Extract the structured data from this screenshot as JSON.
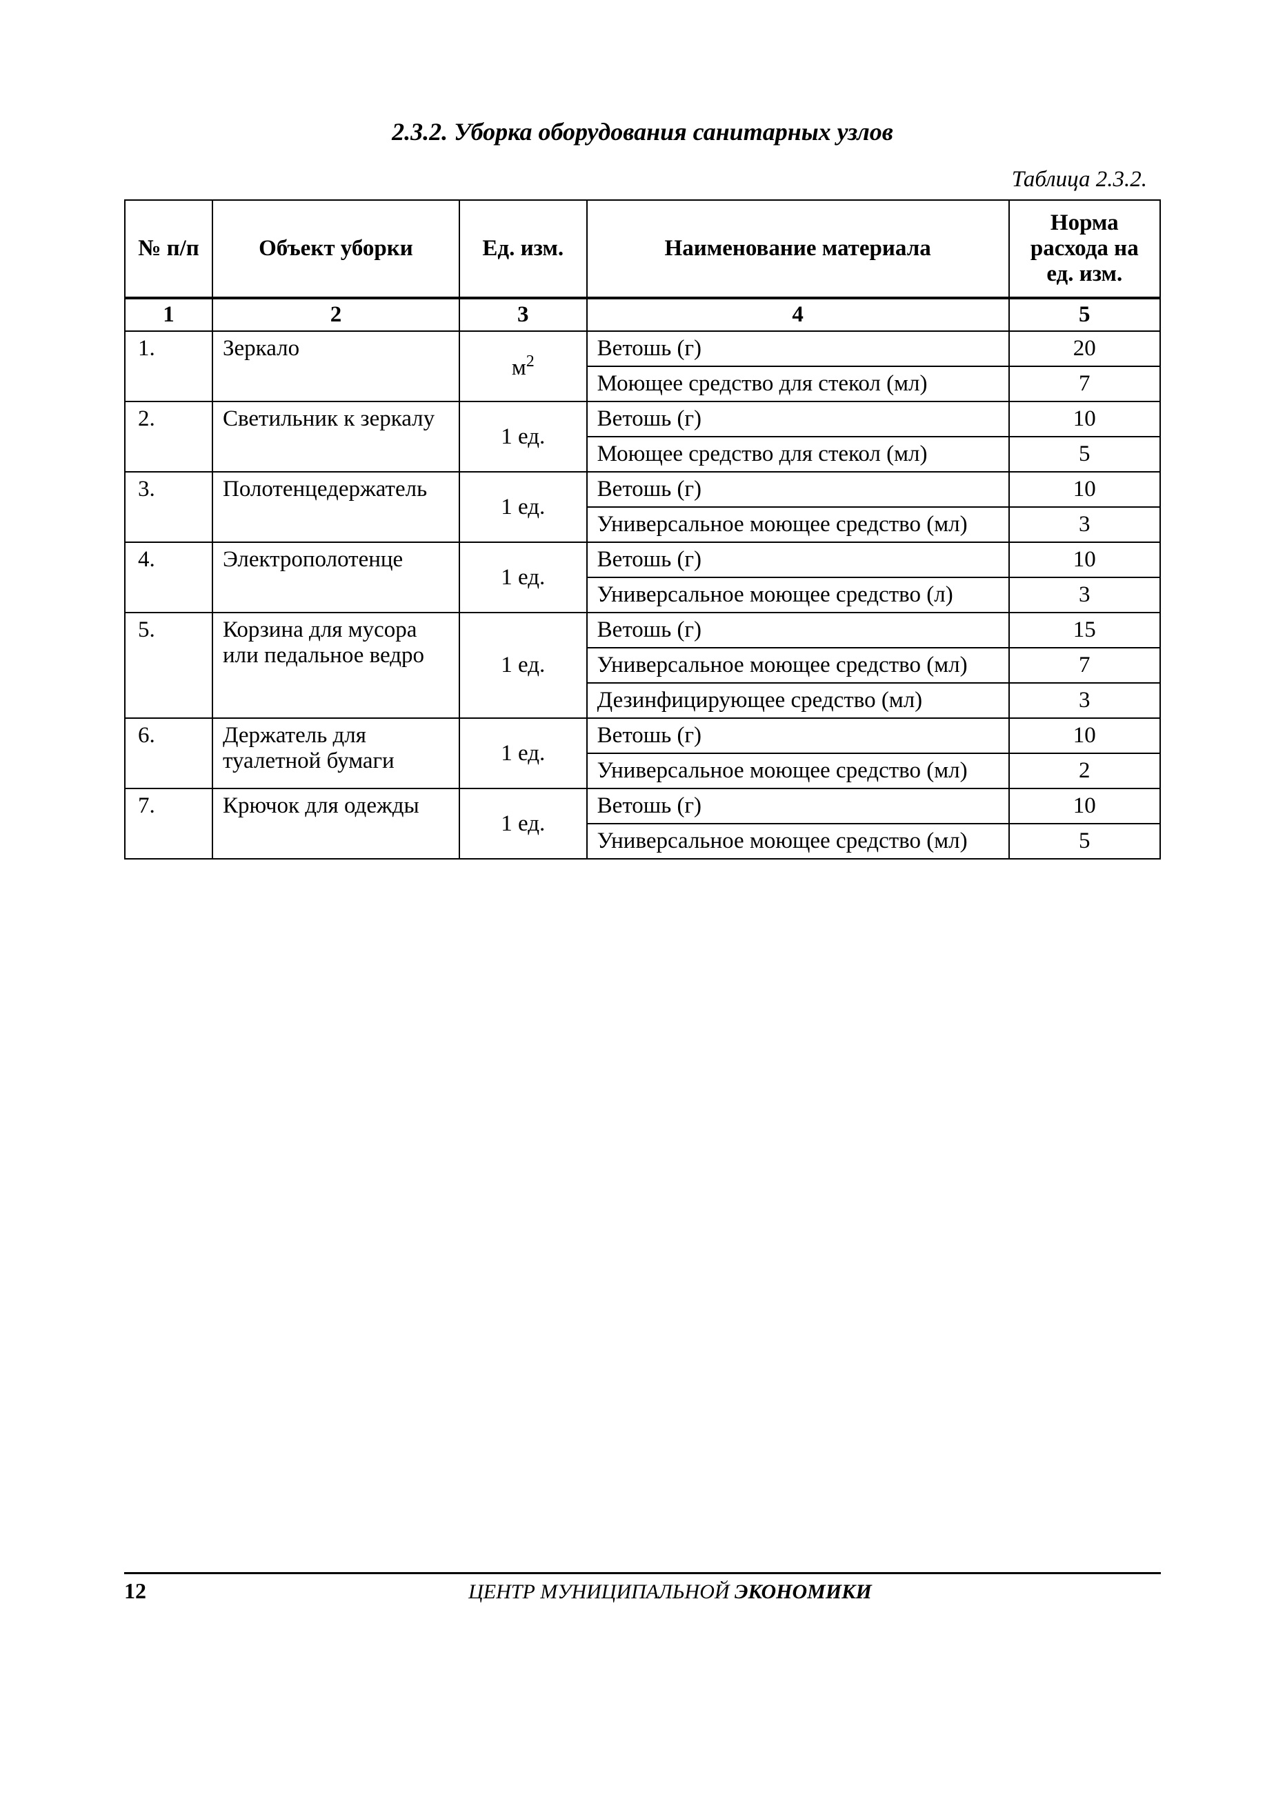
{
  "section_title": "2.3.2. Уборка оборудования санитарных узлов",
  "table_label": "Таблица 2.3.2.",
  "columns": {
    "num": "№ п/п",
    "obj": "Объект уборки",
    "unit": "Ед. изм.",
    "mat": "Наименование материала",
    "norm": "Норма расхода на ед. изм."
  },
  "num_row": [
    "1",
    "2",
    "3",
    "4",
    "5"
  ],
  "rows": [
    {
      "num": "1.",
      "obj": "Зеркало",
      "unit_html": "м²",
      "materials": [
        {
          "name": "Ветошь (г)",
          "norm": "20"
        },
        {
          "name": "Моющее средство для стекол (мл)",
          "norm": "7"
        }
      ]
    },
    {
      "num": "2.",
      "obj": "Светильник к зеркалу",
      "unit": "1 ед.",
      "materials": [
        {
          "name": "Ветошь (г)",
          "norm": "10"
        },
        {
          "name": "Моющее средство для стекол (мл)",
          "norm": "5"
        }
      ]
    },
    {
      "num": "3.",
      "obj": "Полотенцедер­жатель",
      "unit": "1 ед.",
      "materials": [
        {
          "name": "Ветошь (г)",
          "norm": "10"
        },
        {
          "name": "Универсальное моющее средство (мл)",
          "norm": "3"
        }
      ]
    },
    {
      "num": "4.",
      "obj": "Электрополо­тенце",
      "unit": "1 ед.",
      "materials": [
        {
          "name": "Ветошь (г)",
          "norm": "10"
        },
        {
          "name": "Универсальное моющее средство (л)",
          "norm": "3"
        }
      ]
    },
    {
      "num": "5.",
      "obj": "Корзина для мусора или пе­дальное ведро",
      "unit": "1 ед.",
      "materials": [
        {
          "name": "Ветошь (г)",
          "norm": "15"
        },
        {
          "name": "Универсальное моющее средство (мл)",
          "norm": "7"
        },
        {
          "name": "Дезинфицирующее средство (мл)",
          "norm": "3"
        }
      ]
    },
    {
      "num": "6.",
      "obj": "Держатель для туалетной бу­маги",
      "unit": "1 ед.",
      "materials": [
        {
          "name": "Ветошь (г)",
          "norm": "10"
        },
        {
          "name": "Универсальное моющее средство (мл)",
          "norm": "2"
        }
      ]
    },
    {
      "num": "7.",
      "obj": "Крючок для одежды",
      "unit": "1 ед.",
      "materials": [
        {
          "name": "Ветошь (г)",
          "norm": "10"
        },
        {
          "name": "Универсальное моющее средство (мл)",
          "norm": "5"
        }
      ]
    }
  ],
  "footer": {
    "page": "12",
    "text_prefix": "ЦЕНТР МУНИЦИПАЛЬНОЙ",
    "text_bold": " ЭКОНОМИКИ"
  }
}
